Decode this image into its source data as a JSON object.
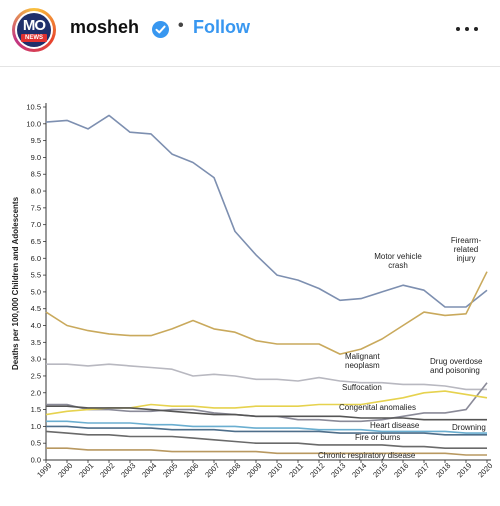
{
  "header": {
    "avatar": {
      "logo_letters": "MO",
      "logo_news": "NEWS"
    },
    "username": "mosheh",
    "separator": "•",
    "follow_label": "Follow",
    "verified_icon": "verified-badge-icon",
    "more_icon": "more-options-icon"
  },
  "colors": {
    "follow": "#3897f0",
    "verified": "#3897f0",
    "motor_vehicle": "#7d8fb0",
    "firearm": "#c9a95c",
    "malignant": "#b8b8c0",
    "drug": "#8a8a98",
    "suffocation": "#e6d24e",
    "congenital": "#555555",
    "heart": "#6aaed0",
    "drowning": "#4e6e8a",
    "fire": "#6a6a6a",
    "chronic": "#b89860"
  },
  "chart_data": {
    "type": "line",
    "ylabel": "Deaths per 100,000 Children and Adolescents",
    "xlabel": "",
    "ylim": [
      0,
      10.5
    ],
    "y_ticks": [
      "0.0",
      "0.5",
      "1.0",
      "1.5",
      "2.0",
      "2.5",
      "3.0",
      "3.5",
      "4.0",
      "4.5",
      "5.0",
      "5.5",
      "6.0",
      "6.5",
      "7.0",
      "7.5",
      "8.0",
      "8.5",
      "9.0",
      "9.5",
      "10.0",
      "10.5"
    ],
    "x": [
      "1999",
      "2000",
      "2001",
      "2002",
      "2003",
      "2004",
      "2005",
      "2006",
      "2007",
      "2008",
      "2009",
      "2010",
      "2011",
      "2012",
      "2013",
      "2014",
      "2015",
      "2016",
      "2017",
      "2018",
      "2019",
      "2020"
    ],
    "grid": false,
    "series": [
      {
        "name": "Motor vehicle crash",
        "label_lines": [
          "Motor vehicle",
          "crash"
        ],
        "color_key": "motor_vehicle",
        "values": [
          10.05,
          10.1,
          9.85,
          10.25,
          9.75,
          9.7,
          9.1,
          8.85,
          8.4,
          6.8,
          6.1,
          5.5,
          5.35,
          5.1,
          4.75,
          4.8,
          5.0,
          5.2,
          5.05,
          4.55,
          4.55,
          5.05
        ]
      },
      {
        "name": "Firearm-related injury",
        "label_lines": [
          "Firearm-",
          "related",
          "injury"
        ],
        "color_key": "firearm",
        "values": [
          4.4,
          4.0,
          3.85,
          3.75,
          3.7,
          3.7,
          3.9,
          4.15,
          3.9,
          3.8,
          3.55,
          3.45,
          3.45,
          3.45,
          3.15,
          3.3,
          3.6,
          4.0,
          4.4,
          4.3,
          4.35,
          5.6
        ]
      },
      {
        "name": "Malignant neoplasm",
        "label_lines": [
          "Malignant",
          "neoplasm"
        ],
        "color_key": "malignant",
        "values": [
          2.85,
          2.85,
          2.8,
          2.85,
          2.8,
          2.75,
          2.7,
          2.5,
          2.55,
          2.5,
          2.4,
          2.4,
          2.35,
          2.45,
          2.35,
          2.3,
          2.3,
          2.25,
          2.25,
          2.2,
          2.1,
          2.1
        ]
      },
      {
        "name": "Drug overdose and poisoning",
        "label_lines": [
          "Drug overdose",
          "and poisoning"
        ],
        "color_key": "drug",
        "values": [
          1.65,
          1.65,
          1.5,
          1.5,
          1.45,
          1.45,
          1.5,
          1.5,
          1.4,
          1.35,
          1.3,
          1.3,
          1.2,
          1.2,
          1.15,
          1.15,
          1.2,
          1.3,
          1.4,
          1.4,
          1.5,
          2.3
        ]
      },
      {
        "name": "Suffocation",
        "label_lines": [
          "Suffocation"
        ],
        "color_key": "suffocation",
        "values": [
          1.35,
          1.45,
          1.5,
          1.55,
          1.55,
          1.65,
          1.6,
          1.6,
          1.55,
          1.55,
          1.6,
          1.6,
          1.6,
          1.65,
          1.65,
          1.65,
          1.75,
          1.85,
          2.0,
          2.05,
          1.95,
          1.85
        ]
      },
      {
        "name": "Congenital anomalies",
        "label_lines": [
          "Congenital anomalies"
        ],
        "color_key": "congenital",
        "values": [
          1.6,
          1.6,
          1.55,
          1.55,
          1.55,
          1.5,
          1.45,
          1.4,
          1.35,
          1.35,
          1.3,
          1.3,
          1.3,
          1.3,
          1.3,
          1.25,
          1.25,
          1.25,
          1.2,
          1.2,
          1.2,
          1.2
        ]
      },
      {
        "name": "Heart disease",
        "label_lines": [
          "Heart disease"
        ],
        "color_key": "heart",
        "values": [
          1.15,
          1.15,
          1.1,
          1.1,
          1.1,
          1.05,
          1.05,
          1.0,
          1.0,
          1.0,
          0.95,
          0.95,
          0.95,
          0.9,
          0.9,
          0.9,
          0.85,
          0.85,
          0.85,
          0.85,
          0.8,
          0.8
        ]
      },
      {
        "name": "Drowning",
        "label_lines": [
          "Drowning"
        ],
        "color_key": "drowning",
        "values": [
          1.0,
          1.0,
          0.95,
          0.95,
          0.95,
          0.95,
          0.9,
          0.9,
          0.9,
          0.85,
          0.85,
          0.85,
          0.85,
          0.85,
          0.8,
          0.8,
          0.8,
          0.8,
          0.8,
          0.75,
          0.75,
          0.75
        ]
      },
      {
        "name": "Fire or burns",
        "label_lines": [
          "Fire or burns"
        ],
        "color_key": "fire",
        "values": [
          0.85,
          0.8,
          0.75,
          0.75,
          0.7,
          0.7,
          0.7,
          0.65,
          0.6,
          0.55,
          0.5,
          0.5,
          0.5,
          0.45,
          0.45,
          0.45,
          0.45,
          0.4,
          0.4,
          0.35,
          0.35,
          0.35
        ]
      },
      {
        "name": "Chronic respiratory disease",
        "label_lines": [
          "Chronic respiratory disease"
        ],
        "color_key": "chronic",
        "values": [
          0.35,
          0.35,
          0.3,
          0.3,
          0.3,
          0.3,
          0.25,
          0.25,
          0.25,
          0.25,
          0.25,
          0.2,
          0.2,
          0.2,
          0.2,
          0.2,
          0.2,
          0.2,
          0.2,
          0.2,
          0.15,
          0.15
        ]
      }
    ]
  }
}
